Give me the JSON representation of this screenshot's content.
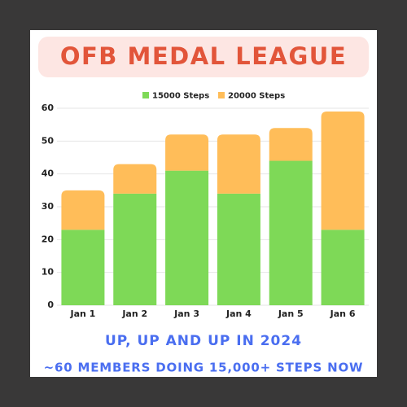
{
  "chart_data": {
    "type": "stacked-bar",
    "title": "OFB MEDAL LEAGUE",
    "annotations": [
      "UP, UP AND UP IN 2024",
      "~60 MEMBERS DOING 15,000+ STEPS NOW"
    ],
    "categories": [
      "Jan 1",
      "Jan 2",
      "Jan 3",
      "Jan 4",
      "Jan 5",
      "Jan 6"
    ],
    "series": [
      {
        "name": "15000 Steps",
        "color": "#7ed957",
        "values": [
          23,
          34,
          41,
          34,
          44,
          23
        ]
      },
      {
        "name": "20000 Steps",
        "color": "#ffbd59",
        "values": [
          12,
          9,
          11,
          18,
          10,
          36
        ]
      }
    ],
    "ylim": [
      0,
      60
    ],
    "yticks": [
      0,
      10,
      20,
      30,
      40,
      50,
      60
    ],
    "grid": true,
    "legend": "top"
  }
}
